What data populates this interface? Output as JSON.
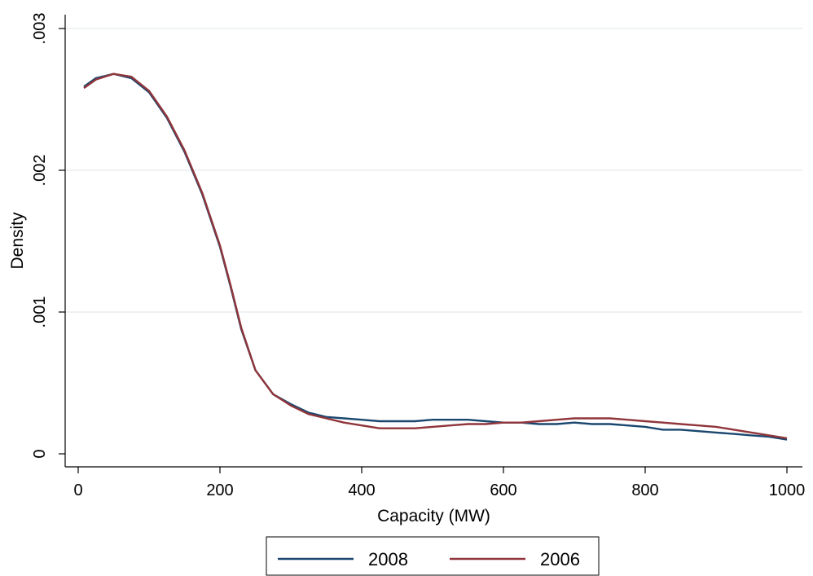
{
  "chart_data": {
    "type": "line",
    "xlabel": "Capacity (MW)",
    "ylabel": "Density",
    "xlim": [
      0,
      1000
    ],
    "ylim": [
      0,
      0.003
    ],
    "x_ticks": [
      0,
      200,
      400,
      600,
      800,
      1000
    ],
    "x_tick_labels": [
      "0",
      "200",
      "400",
      "600",
      "800",
      "1000"
    ],
    "y_ticks": [
      0,
      0.001,
      0.002,
      0.003
    ],
    "y_tick_labels": [
      "0",
      ".001",
      ".002",
      ".003"
    ],
    "grid": "horizontal",
    "legend_position": "bottom",
    "series": [
      {
        "name": "2008",
        "color": "#1a476f",
        "x": [
          8,
          25,
          50,
          75,
          100,
          125,
          150,
          175,
          200,
          215,
          230,
          250,
          275,
          300,
          325,
          350,
          375,
          400,
          425,
          450,
          475,
          500,
          525,
          550,
          575,
          600,
          625,
          650,
          675,
          700,
          725,
          750,
          775,
          800,
          825,
          850,
          875,
          900,
          925,
          950,
          975,
          1000
        ],
        "y": [
          0.00259,
          0.00265,
          0.00268,
          0.00265,
          0.00255,
          0.00237,
          0.00213,
          0.00183,
          0.00146,
          0.00118,
          0.00088,
          0.00059,
          0.00042,
          0.00035,
          0.00029,
          0.00026,
          0.00025,
          0.00024,
          0.00023,
          0.00023,
          0.00023,
          0.00024,
          0.00024,
          0.00024,
          0.00023,
          0.00022,
          0.00022,
          0.00021,
          0.00021,
          0.00022,
          0.00021,
          0.00021,
          0.0002,
          0.00019,
          0.00017,
          0.00017,
          0.00016,
          0.00015,
          0.00014,
          0.00013,
          0.00012,
          0.0001
        ]
      },
      {
        "name": "2006",
        "color": "#90353b",
        "x": [
          8,
          25,
          50,
          75,
          100,
          125,
          150,
          175,
          200,
          215,
          230,
          250,
          275,
          300,
          325,
          350,
          375,
          400,
          425,
          450,
          475,
          500,
          525,
          550,
          575,
          600,
          625,
          650,
          675,
          700,
          725,
          750,
          775,
          800,
          825,
          850,
          875,
          900,
          925,
          950,
          975,
          1000
        ],
        "y": [
          0.00258,
          0.00264,
          0.00268,
          0.00266,
          0.00256,
          0.00238,
          0.00214,
          0.00184,
          0.00147,
          0.00119,
          0.00089,
          0.00059,
          0.00042,
          0.00034,
          0.00028,
          0.00025,
          0.00022,
          0.0002,
          0.00018,
          0.00018,
          0.00018,
          0.00019,
          0.0002,
          0.00021,
          0.00021,
          0.00022,
          0.00022,
          0.00023,
          0.00024,
          0.00025,
          0.00025,
          0.00025,
          0.00024,
          0.00023,
          0.00022,
          0.00021,
          0.0002,
          0.00019,
          0.00017,
          0.00015,
          0.00013,
          0.00011
        ]
      }
    ]
  }
}
